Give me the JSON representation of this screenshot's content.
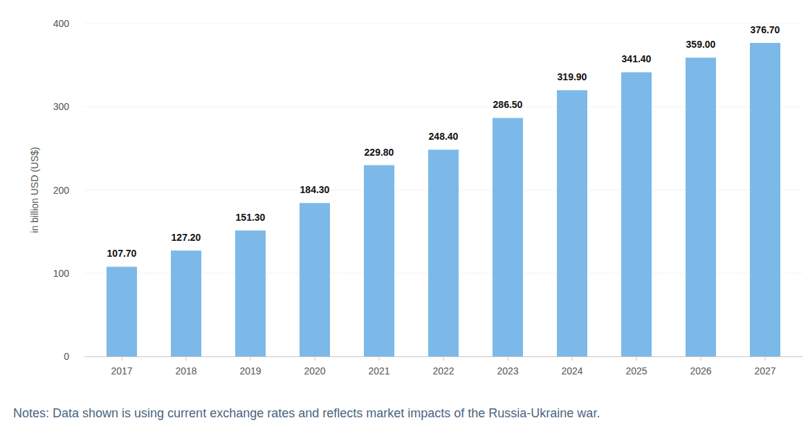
{
  "chart_data": {
    "type": "bar",
    "y_label": "in billion USD (US$)",
    "annotations": [
      "Notes: Data shown is using current exchange rates and reflects market impacts of the Russia-Ukraine war."
    ],
    "categories": [
      "2017",
      "2018",
      "2019",
      "2020",
      "2021",
      "2022",
      "2023",
      "2024",
      "2025",
      "2026",
      "2027"
    ],
    "values": [
      107.7,
      127.2,
      151.3,
      184.3,
      229.8,
      248.4,
      286.5,
      319.9,
      341.4,
      359.0,
      376.7
    ],
    "value_labels": [
      "107.70",
      "127.20",
      "151.30",
      "184.30",
      "229.80",
      "248.40",
      "286.50",
      "319.90",
      "341.40",
      "359.00",
      "376.70"
    ],
    "color": "#7cb9e8",
    "ylim": [
      0,
      400
    ],
    "yticks": [
      0,
      100,
      200,
      300,
      400
    ],
    "grid": true,
    "data_labels": true
  }
}
